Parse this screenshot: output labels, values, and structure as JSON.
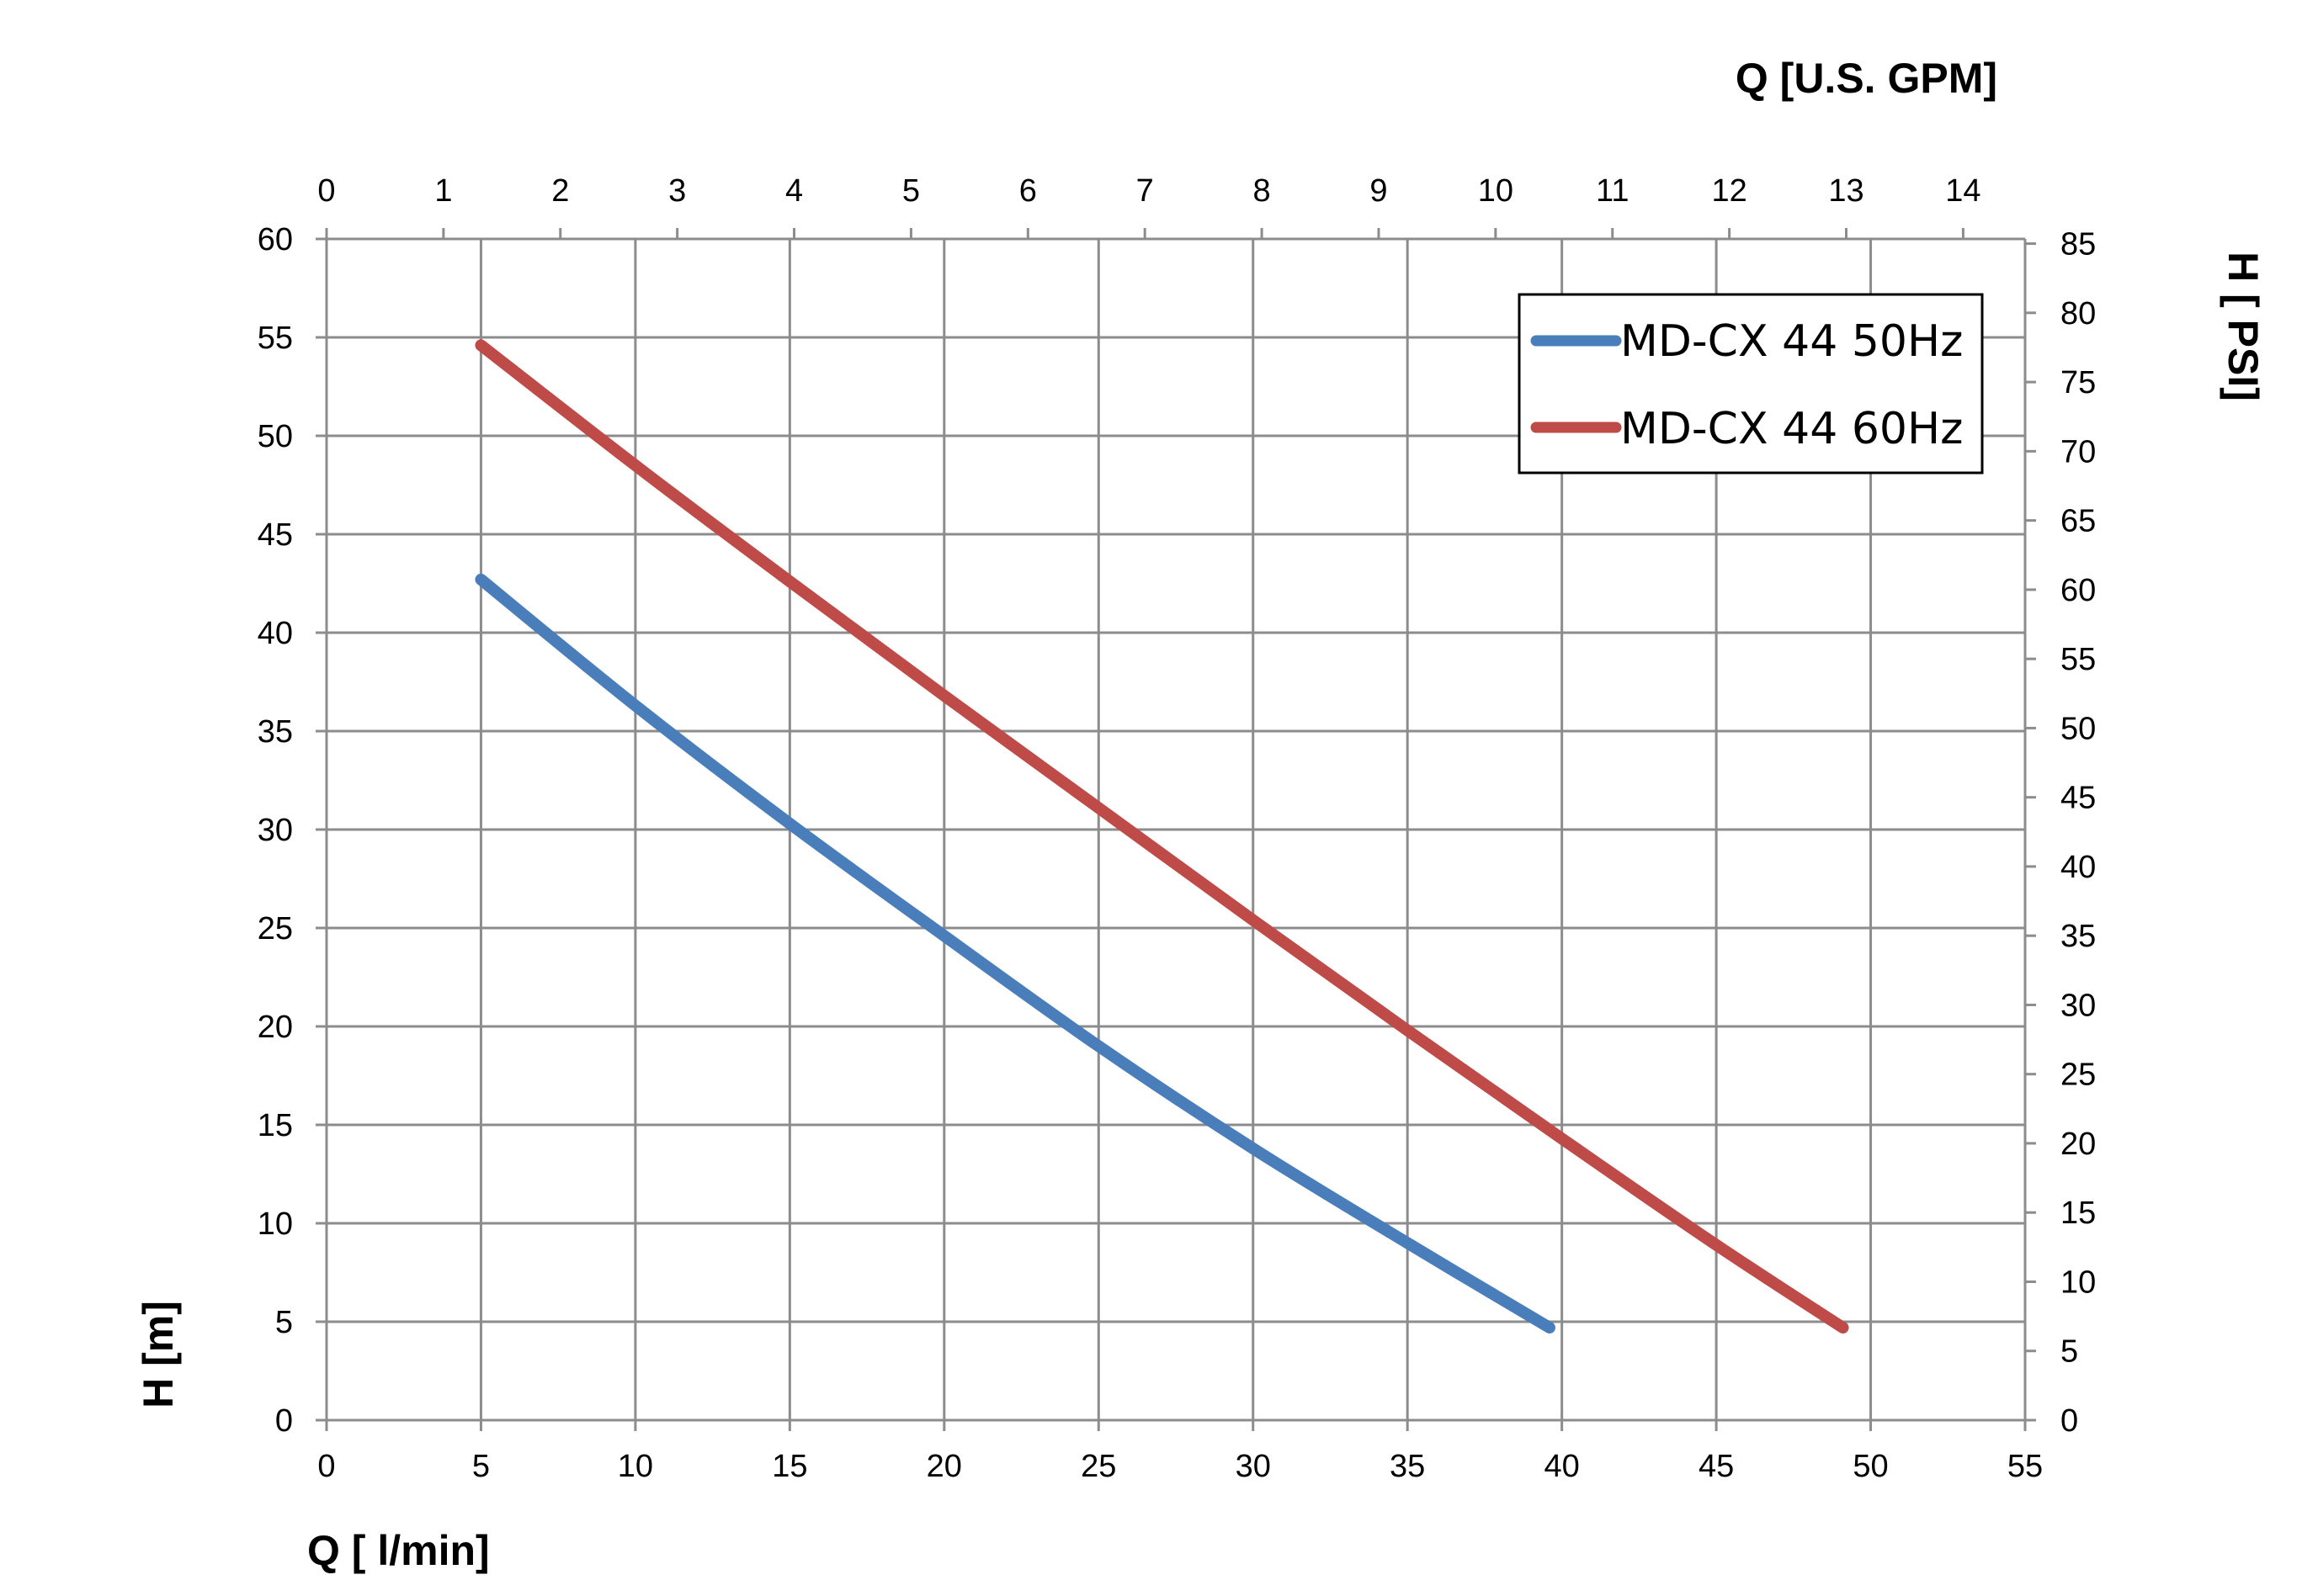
{
  "chart_data": {
    "type": "line",
    "xlabel": "Q [ l/min]",
    "ylabel": "H [m]",
    "x2label": "Q  [U.S. GPM]",
    "y2label": "H [ PSI]",
    "xlim": [
      0,
      55
    ],
    "ylim": [
      0,
      60
    ],
    "x2lim": [
      0,
      14.53
    ],
    "y2lim": [
      0,
      85.34
    ],
    "x_ticks": [
      "0",
      "5",
      "10",
      "15",
      "20",
      "25",
      "30",
      "35",
      "40",
      "45",
      "50",
      "55"
    ],
    "y_ticks": [
      "0",
      "5",
      "10",
      "15",
      "20",
      "25",
      "30",
      "35",
      "40",
      "45",
      "50",
      "55",
      "60"
    ],
    "x2_ticks": [
      "0",
      "1",
      "2",
      "3",
      "4",
      "5",
      "6",
      "7",
      "8",
      "9",
      "10",
      "11",
      "12",
      "13",
      "14"
    ],
    "y2_ticks": [
      "0",
      "5",
      "10",
      "15",
      "20",
      "25",
      "30",
      "35",
      "40",
      "45",
      "50",
      "55",
      "60",
      "65",
      "70",
      "75",
      "80",
      "85"
    ],
    "grid": true,
    "legend_position": "top-right",
    "series": [
      {
        "name": "MD-CX 44 50Hz",
        "color": "#4a7ebb",
        "x": [
          5,
          10,
          15,
          20,
          25,
          30,
          35,
          39.6
        ],
        "y": [
          42.7,
          36.3,
          30.3,
          24.6,
          19.0,
          13.8,
          9.0,
          4.7
        ]
      },
      {
        "name": "MD-CX 44 60Hz",
        "color": "#be4b48",
        "x": [
          5,
          10,
          15,
          20,
          25,
          30,
          35,
          40,
          45,
          49.1
        ],
        "y": [
          54.6,
          48.5,
          42.6,
          36.8,
          31.1,
          25.4,
          19.8,
          14.3,
          8.9,
          4.7
        ]
      }
    ]
  }
}
